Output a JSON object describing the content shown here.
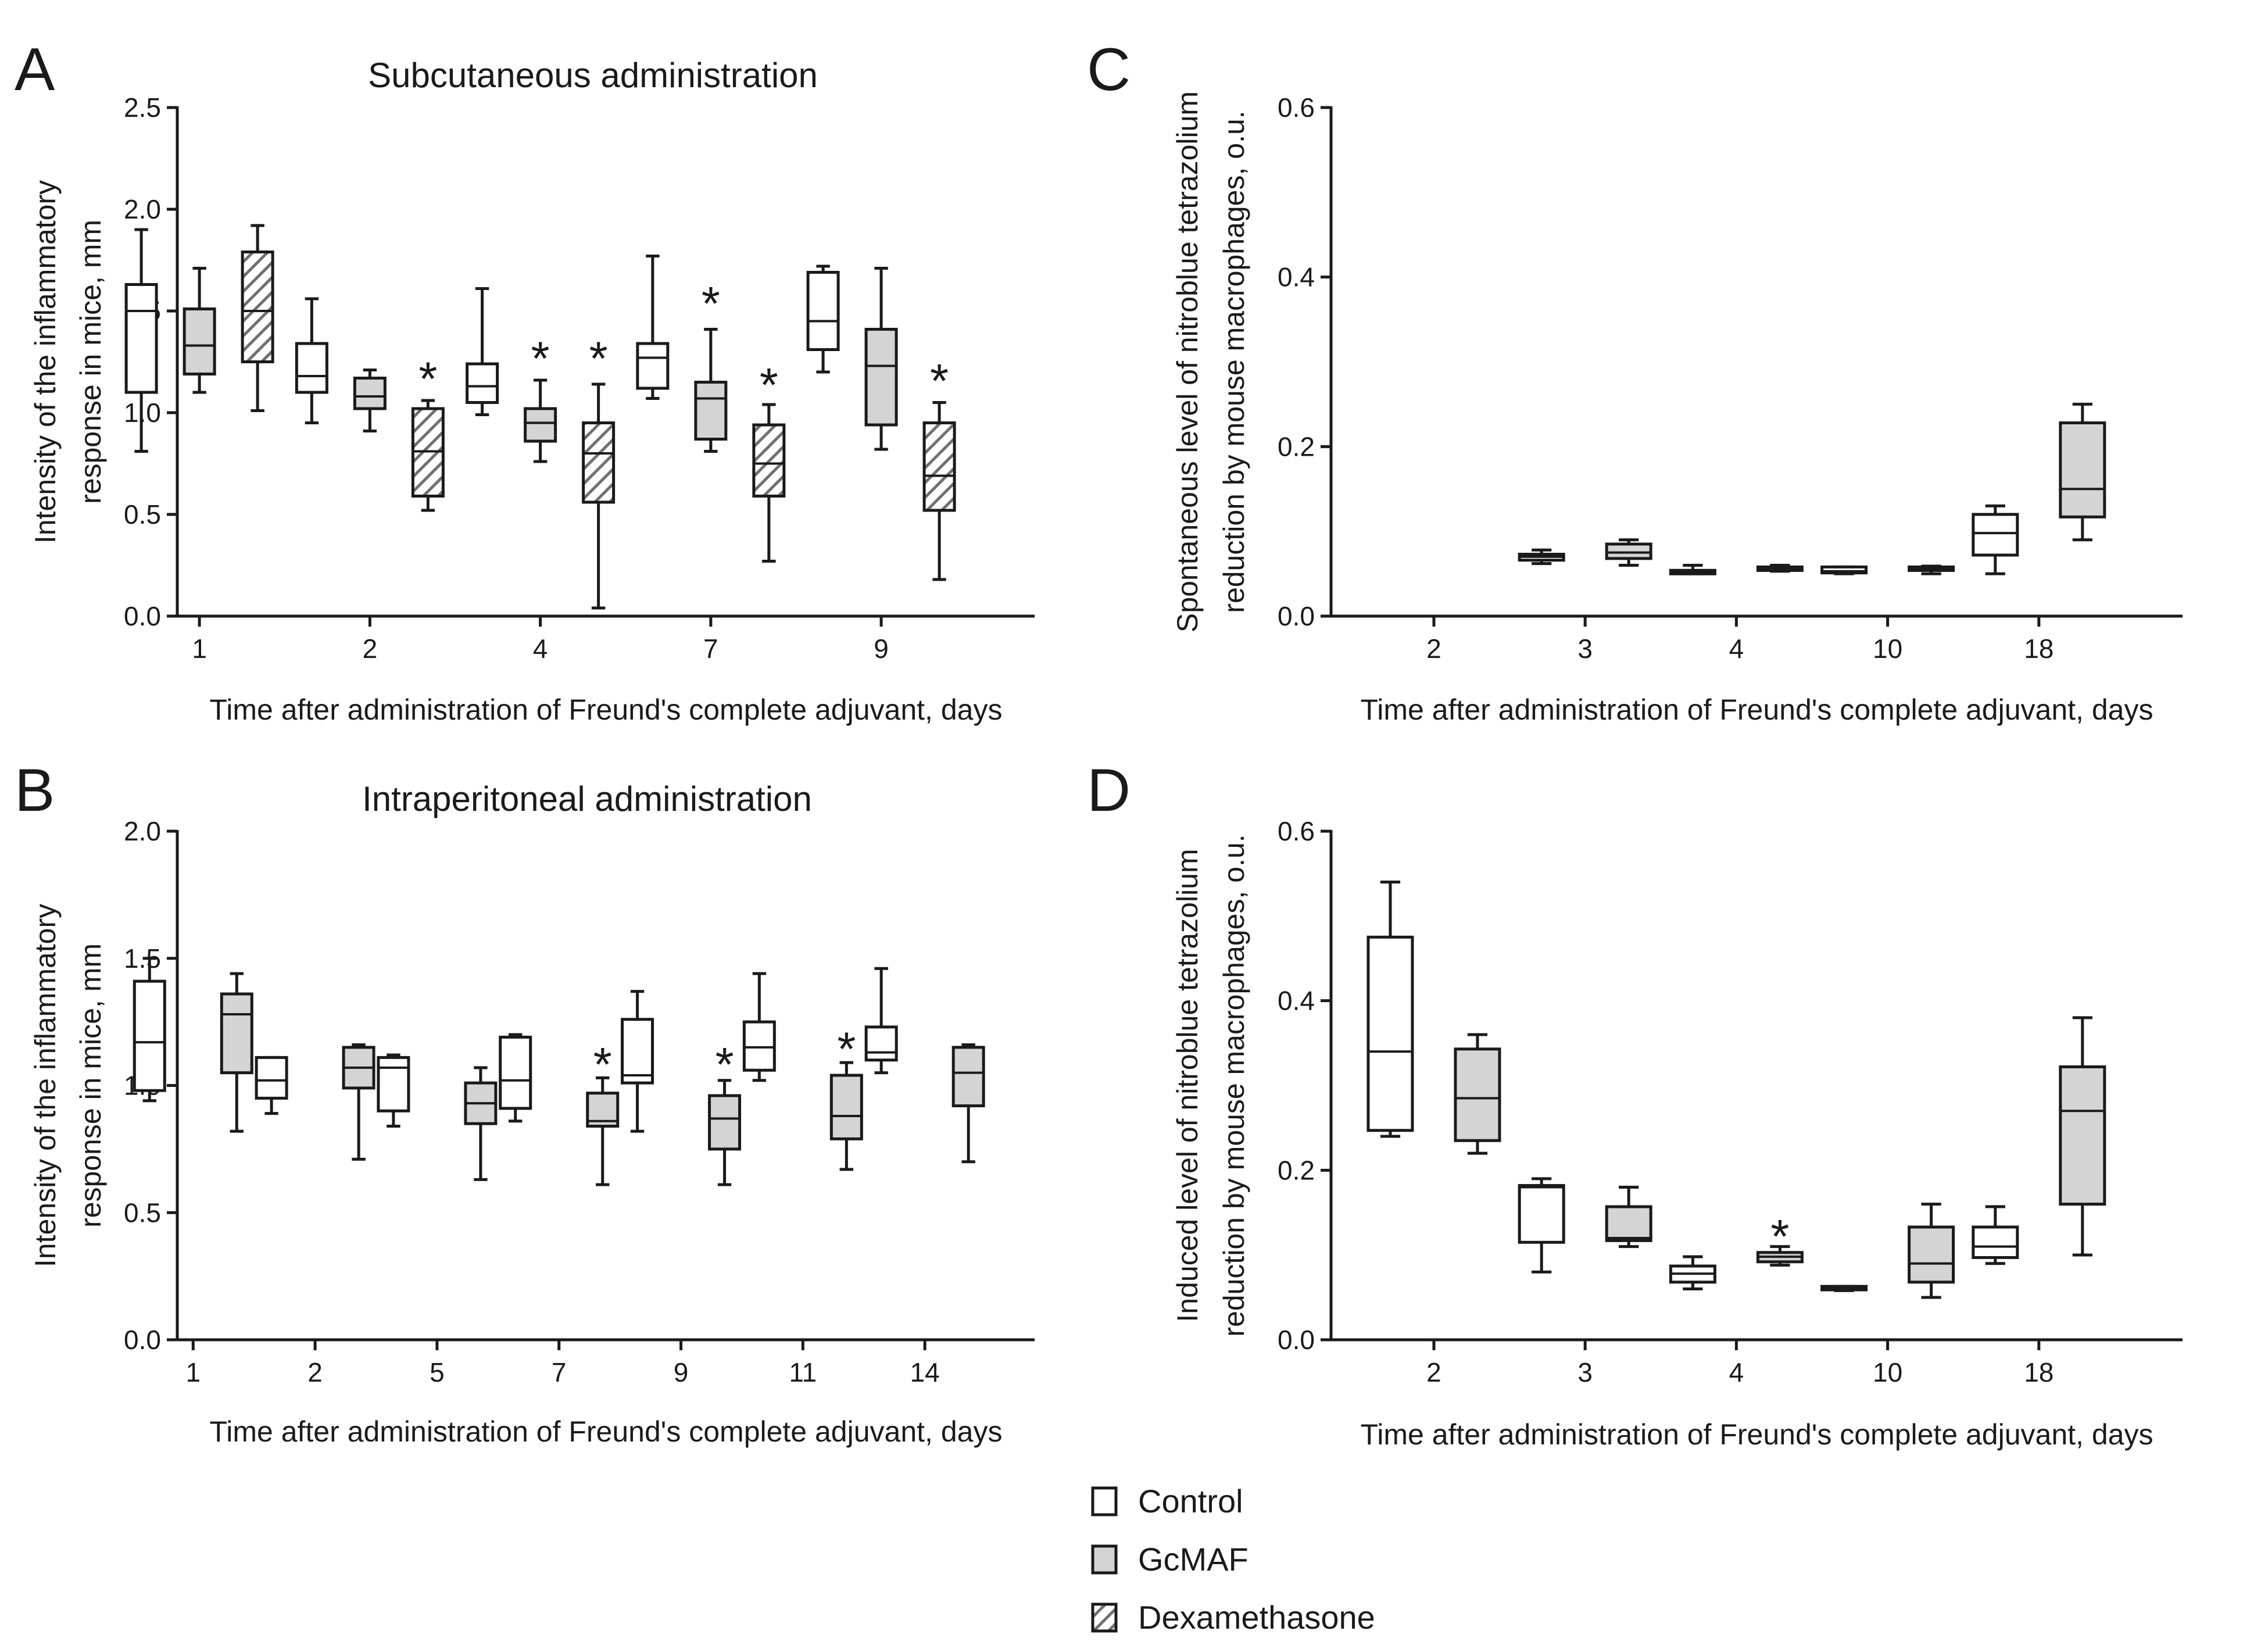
{
  "colors": {
    "control": "#ffffff",
    "gcmaf": "#d4d4d4",
    "dexamethasone_hatch": "#707070",
    "ink": "#1a1a1a"
  },
  "legend": {
    "entries": [
      {
        "name": "Control",
        "fill": "control"
      },
      {
        "name": "GcMAF",
        "fill": "gcmaf"
      },
      {
        "name": "Dexamethasone",
        "fill": "hatch"
      }
    ]
  },
  "chart_data": [
    {
      "id": "A",
      "type": "box",
      "panel_letter": "A",
      "title": "Subcutaneous administration",
      "xlabel": "Time after administration of Freund's complete adjuvant, days",
      "ylabel": [
        "Intensity of the inflammatory",
        "response in mice, mm"
      ],
      "ylim": [
        0,
        2.5
      ],
      "yticks": [
        "0.0",
        "0.5",
        "1.0",
        "1.5",
        "2.0",
        "2.5"
      ],
      "categories": [
        "1",
        "2",
        "4",
        "7",
        "9"
      ],
      "series": [
        {
          "name": "Control",
          "fill": "control",
          "boxes": [
            {
              "min": 0.81,
              "q1": 1.1,
              "median": 1.5,
              "q3": 1.63,
              "max": 1.9
            },
            {
              "min": 0.95,
              "q1": 1.1,
              "median": 1.18,
              "q3": 1.34,
              "max": 1.56
            },
            {
              "min": 0.99,
              "q1": 1.05,
              "median": 1.13,
              "q3": 1.24,
              "max": 1.61
            },
            {
              "min": 1.07,
              "q1": 1.12,
              "median": 1.27,
              "q3": 1.34,
              "max": 1.77
            },
            {
              "min": 1.2,
              "q1": 1.31,
              "median": 1.45,
              "q3": 1.69,
              "max": 1.72
            }
          ]
        },
        {
          "name": "GcMAF",
          "fill": "gcmaf",
          "boxes": [
            {
              "min": 1.1,
              "q1": 1.19,
              "median": 1.33,
              "q3": 1.51,
              "max": 1.71
            },
            {
              "min": 0.91,
              "q1": 1.02,
              "median": 1.08,
              "q3": 1.17,
              "max": 1.21
            },
            {
              "min": 0.76,
              "q1": 0.86,
              "median": 0.95,
              "q3": 1.02,
              "max": 1.16
            },
            {
              "min": 0.81,
              "q1": 0.87,
              "median": 1.07,
              "q3": 1.15,
              "max": 1.41
            },
            {
              "min": 0.82,
              "q1": 0.94,
              "median": 1.23,
              "q3": 1.41,
              "max": 1.71
            }
          ]
        },
        {
          "name": "Dexamethasone",
          "fill": "hatch",
          "boxes": [
            {
              "min": 1.01,
              "q1": 1.25,
              "median": 1.5,
              "q3": 1.79,
              "max": 1.92
            },
            {
              "min": 0.52,
              "q1": 0.59,
              "median": 0.81,
              "q3": 1.02,
              "max": 1.06
            },
            {
              "min": 0.04,
              "q1": 0.56,
              "median": 0.8,
              "q3": 0.95,
              "max": 1.14
            },
            {
              "min": 0.27,
              "q1": 0.59,
              "median": 0.75,
              "q3": 0.94,
              "max": 1.04
            },
            {
              "min": 0.18,
              "q1": 0.52,
              "median": 0.69,
              "q3": 0.95,
              "max": 1.05
            }
          ]
        }
      ],
      "annotations": [
        {
          "text": "*",
          "category": 1,
          "series": 2,
          "y": 1.2
        },
        {
          "text": "*",
          "category": 2,
          "series": 1,
          "y": 1.3
        },
        {
          "text": "*",
          "category": 2,
          "series": 2,
          "y": 1.3
        },
        {
          "text": "*",
          "category": 3,
          "series": 1,
          "y": 1.57
        },
        {
          "text": "*",
          "category": 3,
          "series": 2,
          "y": 1.17
        },
        {
          "text": "*",
          "category": 4,
          "series": 2,
          "y": 1.19
        }
      ]
    },
    {
      "id": "B",
      "type": "box",
      "panel_letter": "B",
      "title": "Intraperitoneal administration",
      "xlabel": "Time after administration of Freund's complete adjuvant, days",
      "ylabel": [
        "Intensity of the inflammatory",
        "response in mice, mm"
      ],
      "ylim": [
        0,
        2.0
      ],
      "yticks": [
        "0.0",
        "0.5",
        "1.0",
        "1.5",
        "2.0"
      ],
      "categories": [
        "1",
        "2",
        "5",
        "7",
        "9",
        "11",
        "14"
      ],
      "series": [
        {
          "name": "Control",
          "fill": "control",
          "boxes": [
            {
              "min": 0.94,
              "q1": 0.98,
              "median": 1.17,
              "q3": 1.41,
              "max": 1.5
            },
            {
              "min": 0.89,
              "q1": 0.95,
              "median": 1.02,
              "q3": 1.11,
              "max": 1.11
            },
            {
              "min": 0.84,
              "q1": 0.9,
              "median": 1.07,
              "q3": 1.11,
              "max": 1.12
            },
            {
              "min": 0.86,
              "q1": 0.91,
              "median": 1.02,
              "q3": 1.19,
              "max": 1.2
            },
            {
              "min": 0.82,
              "q1": 1.01,
              "median": 1.04,
              "q3": 1.26,
              "max": 1.37
            },
            {
              "min": 1.02,
              "q1": 1.06,
              "median": 1.15,
              "q3": 1.25,
              "max": 1.44
            },
            {
              "min": 1.05,
              "q1": 1.1,
              "median": 1.13,
              "q3": 1.23,
              "max": 1.46
            }
          ]
        },
        {
          "name": "GcMAF",
          "fill": "gcmaf",
          "boxes": [
            {
              "min": 0.82,
              "q1": 1.05,
              "median": 1.28,
              "q3": 1.36,
              "max": 1.44
            },
            {
              "min": 0.71,
              "q1": 0.99,
              "median": 1.07,
              "q3": 1.15,
              "max": 1.16
            },
            {
              "min": 0.63,
              "q1": 0.85,
              "median": 0.93,
              "q3": 1.01,
              "max": 1.07
            },
            {
              "min": 0.61,
              "q1": 0.84,
              "median": 0.86,
              "q3": 0.97,
              "max": 1.03
            },
            {
              "min": 0.61,
              "q1": 0.75,
              "median": 0.87,
              "q3": 0.96,
              "max": 1.02
            },
            {
              "min": 0.67,
              "q1": 0.79,
              "median": 0.88,
              "q3": 1.04,
              "max": 1.09
            },
            {
              "min": 0.7,
              "q1": 0.92,
              "median": 1.05,
              "q3": 1.15,
              "max": 1.16
            }
          ]
        }
      ],
      "annotations": [
        {
          "text": "*",
          "category": 3,
          "series": 1,
          "y": 1.11
        },
        {
          "text": "*",
          "category": 4,
          "series": 1,
          "y": 1.11
        },
        {
          "text": "*",
          "category": 5,
          "series": 1,
          "y": 1.17
        }
      ]
    },
    {
      "id": "C",
      "type": "box",
      "panel_letter": "C",
      "title": "",
      "xlabel": "Time after administration of Freund's complete adjuvant, days",
      "ylabel": [
        "Spontaneous level of nitroblue tetrazolium",
        "reduction by mouse macrophages, o.u."
      ],
      "ylim": [
        0,
        0.6
      ],
      "yticks": [
        "0.0",
        "0.2",
        "0.4",
        "0.6"
      ],
      "categories": [
        "2",
        "3",
        "4",
        "10",
        "18"
      ],
      "series": [
        {
          "name": "Control",
          "fill": "control",
          "boxes": [
            null,
            {
              "min": 0.062,
              "q1": 0.066,
              "median": 0.07,
              "q3": 0.073,
              "max": 0.078
            },
            {
              "min": 0.05,
              "q1": 0.051,
              "median": 0.052,
              "q3": 0.054,
              "max": 0.06
            },
            {
              "min": 0.05,
              "q1": 0.051,
              "median": 0.053,
              "q3": 0.058,
              "max": 0.058
            },
            {
              "min": 0.05,
              "q1": 0.072,
              "median": 0.098,
              "q3": 0.12,
              "max": 0.13
            }
          ]
        },
        {
          "name": "GcMAF",
          "fill": "gcmaf",
          "boxes": [
            null,
            {
              "min": 0.06,
              "q1": 0.068,
              "median": 0.075,
              "q3": 0.085,
              "max": 0.09
            },
            {
              "min": 0.053,
              "q1": 0.054,
              "median": 0.056,
              "q3": 0.058,
              "max": 0.06
            },
            {
              "min": 0.05,
              "q1": 0.054,
              "median": 0.056,
              "q3": 0.058,
              "max": 0.059
            },
            {
              "min": 0.09,
              "q1": 0.117,
              "median": 0.15,
              "q3": 0.228,
              "max": 0.25
            }
          ]
        }
      ],
      "annotations": []
    },
    {
      "id": "D",
      "type": "box",
      "panel_letter": "D",
      "title": "",
      "xlabel": "Time after administration of Freund's complete adjuvant, days",
      "ylabel": [
        "Induced level of nitroblue tetrazolium",
        "reduction by mouse macrophages, o.u."
      ],
      "ylim": [
        0,
        0.6
      ],
      "yticks": [
        "0.0",
        "0.2",
        "0.4",
        "0.6"
      ],
      "categories": [
        "2",
        "3",
        "4",
        "10",
        "18"
      ],
      "series": [
        {
          "name": "Control",
          "fill": "control",
          "boxes": [
            {
              "min": 0.24,
              "q1": 0.247,
              "median": 0.34,
              "q3": 0.475,
              "max": 0.54
            },
            {
              "min": 0.08,
              "q1": 0.115,
              "median": 0.18,
              "q3": 0.182,
              "max": 0.19
            },
            {
              "min": 0.06,
              "q1": 0.068,
              "median": 0.078,
              "q3": 0.087,
              "max": 0.098
            },
            {
              "min": 0.058,
              "q1": 0.059,
              "median": 0.061,
              "q3": 0.063,
              "max": 0.063
            },
            {
              "min": 0.09,
              "q1": 0.097,
              "median": 0.11,
              "q3": 0.133,
              "max": 0.157
            }
          ]
        },
        {
          "name": "GcMAF",
          "fill": "gcmaf",
          "boxes": [
            {
              "min": 0.22,
              "q1": 0.235,
              "median": 0.285,
              "q3": 0.343,
              "max": 0.36
            },
            {
              "min": 0.11,
              "q1": 0.117,
              "median": 0.12,
              "q3": 0.157,
              "max": 0.18
            },
            {
              "min": 0.088,
              "q1": 0.092,
              "median": 0.098,
              "q3": 0.103,
              "max": 0.11
            },
            {
              "min": 0.05,
              "q1": 0.068,
              "median": 0.09,
              "q3": 0.133,
              "max": 0.16
            },
            {
              "min": 0.1,
              "q1": 0.16,
              "median": 0.27,
              "q3": 0.322,
              "max": 0.38
            }
          ]
        }
      ],
      "annotations": [
        {
          "text": "*",
          "category": 2,
          "series": 1,
          "y": 0.13
        }
      ]
    }
  ]
}
